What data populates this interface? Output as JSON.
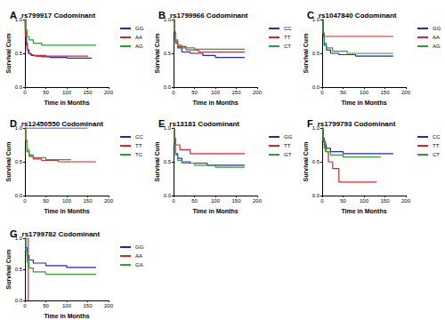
{
  "chart_data": [
    {
      "type": "line",
      "title": "rs799917 Codominant",
      "annotations": [
        "A"
      ],
      "x_label": "Time in Months",
      "y_label": "Survival Cum",
      "xlim": [
        0,
        200
      ],
      "xticks": [
        0,
        50,
        100,
        150,
        200
      ],
      "ylim": [
        0,
        1
      ],
      "yticks": [
        {
          "value": 0,
          "label": "0.0"
        },
        {
          "value": 0.5,
          "label": "0.5"
        },
        {
          "value": 1,
          "label": "1.0"
        }
      ],
      "grid": false,
      "line_style": "step",
      "series": [
        {
          "name": "GG",
          "color": "#2424c8",
          "x": [
            0,
            2,
            4,
            6,
            10,
            15,
            25,
            40,
            60,
            100,
            160
          ],
          "values": [
            1,
            0.8,
            0.65,
            0.55,
            0.5,
            0.47,
            0.46,
            0.45,
            0.44,
            0.43,
            0.43
          ]
        },
        {
          "name": "AA",
          "color": "#e0202a",
          "x": [
            0,
            1,
            3,
            5,
            8,
            12,
            20,
            50,
            150
          ],
          "values": [
            1,
            0.75,
            0.62,
            0.55,
            0.5,
            0.48,
            0.47,
            0.46,
            0.45
          ]
        },
        {
          "name": "AG",
          "color": "#2ca02c",
          "x": [
            0,
            2,
            5,
            10,
            20,
            40,
            170
          ],
          "values": [
            1,
            0.85,
            0.75,
            0.7,
            0.65,
            0.62,
            0.62
          ]
        }
      ]
    },
    {
      "type": "line",
      "title": "rs1799966 Codominant",
      "annotations": [
        "B"
      ],
      "x_label": "Time in Months",
      "y_label": "Survival Cum",
      "xlim": [
        0,
        200
      ],
      "xticks": [
        0,
        50,
        100,
        150,
        200
      ],
      "ylim": [
        0,
        1
      ],
      "yticks": [
        {
          "value": 0,
          "label": "0.0"
        },
        {
          "value": 0.5,
          "label": "0.5"
        },
        {
          "value": 1,
          "label": "1.0"
        }
      ],
      "grid": false,
      "line_style": "step",
      "series": [
        {
          "name": "CC",
          "color": "#2424c8",
          "x": [
            0,
            2,
            5,
            10,
            20,
            40,
            70,
            100,
            170
          ],
          "values": [
            1,
            0.8,
            0.65,
            0.58,
            0.52,
            0.5,
            0.47,
            0.44,
            0.44
          ]
        },
        {
          "name": "TT",
          "color": "#e0202a",
          "x": [
            0,
            2,
            5,
            10,
            30,
            60,
            170
          ],
          "values": [
            1,
            0.8,
            0.68,
            0.6,
            0.55,
            0.52,
            0.52
          ]
        },
        {
          "name": "CT",
          "color": "#2ca02c",
          "x": [
            0,
            2,
            5,
            10,
            20,
            50,
            170
          ],
          "values": [
            1,
            0.82,
            0.7,
            0.62,
            0.58,
            0.56,
            0.56
          ]
        }
      ]
    },
    {
      "type": "line",
      "title": "rs1047840 Codominant",
      "annotations": [
        "C"
      ],
      "x_label": "Time in Months",
      "y_label": "Survival Cum",
      "xlim": [
        0,
        200
      ],
      "xticks": [
        0,
        50,
        100,
        150,
        200
      ],
      "ylim": [
        0,
        1
      ],
      "yticks": [
        {
          "value": 0,
          "label": "0.0"
        },
        {
          "value": 0.5,
          "label": "0.5"
        },
        {
          "value": 1,
          "label": "1.0"
        }
      ],
      "grid": false,
      "line_style": "step",
      "series": [
        {
          "name": "GG",
          "color": "#2424c8",
          "x": [
            0,
            2,
            5,
            10,
            20,
            40,
            80,
            170
          ],
          "values": [
            1,
            0.8,
            0.62,
            0.55,
            0.5,
            0.48,
            0.46,
            0.46
          ]
        },
        {
          "name": "AA",
          "color": "#e0202a",
          "x": [
            0,
            3,
            170
          ],
          "values": [
            1,
            0.75,
            0.75
          ]
        },
        {
          "name": "AG",
          "color": "#2ca02c",
          "x": [
            0,
            2,
            5,
            10,
            25,
            60,
            170
          ],
          "values": [
            1,
            0.8,
            0.65,
            0.58,
            0.53,
            0.5,
            0.5
          ]
        }
      ]
    },
    {
      "type": "line",
      "title": "rs12450550 Codominant",
      "annotations": [
        "D"
      ],
      "x_label": "Time in Months",
      "y_label": "Survival Cum",
      "xlim": [
        0,
        200
      ],
      "xticks": [
        0,
        50,
        100,
        150,
        200
      ],
      "ylim": [
        0,
        1
      ],
      "yticks": [
        {
          "value": 0,
          "label": "0.0"
        },
        {
          "value": 0.5,
          "label": "0.5"
        },
        {
          "value": 1,
          "label": "1.0"
        }
      ],
      "grid": false,
      "line_style": "step",
      "series": [
        {
          "name": "CC",
          "color": "#2424c8",
          "x": [
            0,
            150
          ],
          "values": [
            1,
            1
          ]
        },
        {
          "name": "TT",
          "color": "#e0202a",
          "x": [
            0,
            2,
            5,
            10,
            20,
            40,
            80,
            170
          ],
          "values": [
            1,
            0.8,
            0.65,
            0.58,
            0.54,
            0.52,
            0.5,
            0.5
          ]
        },
        {
          "name": "TC",
          "color": "#2ca02c",
          "x": [
            0,
            2,
            5,
            10,
            20,
            50,
            110
          ],
          "values": [
            1,
            0.82,
            0.68,
            0.6,
            0.56,
            0.53,
            0.53
          ]
        }
      ]
    },
    {
      "type": "line",
      "title": "rs13181 Codominant",
      "annotations": [
        "E"
      ],
      "x_label": "Time in Months",
      "y_label": "Survival Cum",
      "xlim": [
        0,
        200
      ],
      "xticks": [
        0,
        50,
        100,
        150,
        200
      ],
      "ylim": [
        0,
        1
      ],
      "yticks": [
        {
          "value": 0,
          "label": "0.0"
        },
        {
          "value": 0.5,
          "label": "0.5"
        },
        {
          "value": 1,
          "label": "1.0"
        }
      ],
      "grid": false,
      "line_style": "step",
      "series": [
        {
          "name": "GG",
          "color": "#2424c8",
          "x": [
            0,
            2,
            5,
            10,
            20,
            40,
            80,
            170
          ],
          "values": [
            1,
            0.78,
            0.62,
            0.55,
            0.5,
            0.48,
            0.45,
            0.45
          ]
        },
        {
          "name": "TT",
          "color": "#e0202a",
          "x": [
            0,
            2,
            5,
            15,
            40,
            170
          ],
          "values": [
            1,
            0.85,
            0.75,
            0.68,
            0.62,
            0.62
          ]
        },
        {
          "name": "GT",
          "color": "#2ca02c",
          "x": [
            0,
            2,
            5,
            10,
            20,
            50,
            100,
            170
          ],
          "values": [
            1,
            0.75,
            0.6,
            0.52,
            0.48,
            0.45,
            0.42,
            0.42
          ]
        }
      ]
    },
    {
      "type": "line",
      "title": "rs1799793 Codominant",
      "annotations": [
        "F"
      ],
      "x_label": "Time in Months",
      "y_label": "Survival Cum",
      "xlim": [
        0,
        200
      ],
      "xticks": [
        0,
        50,
        100,
        150,
        200
      ],
      "ylim": [
        0,
        1
      ],
      "yticks": [
        {
          "value": 0,
          "label": "0.0"
        },
        {
          "value": 0.5,
          "label": "0.5"
        },
        {
          "value": 1,
          "label": "1.0"
        }
      ],
      "grid": false,
      "line_style": "step",
      "series": [
        {
          "name": "CC",
          "color": "#2424c8",
          "x": [
            0,
            2,
            5,
            10,
            20,
            50,
            170
          ],
          "values": [
            1,
            0.85,
            0.75,
            0.7,
            0.65,
            0.62,
            0.62
          ]
        },
        {
          "name": "TT",
          "color": "#e0202a",
          "x": [
            0,
            3,
            8,
            15,
            25,
            40,
            130
          ],
          "values": [
            1,
            0.8,
            0.65,
            0.5,
            0.4,
            0.2,
            0.2
          ]
        },
        {
          "name": "CT",
          "color": "#2ca02c",
          "x": [
            0,
            2,
            5,
            10,
            20,
            50,
            140
          ],
          "values": [
            1,
            0.82,
            0.7,
            0.65,
            0.6,
            0.57,
            0.57
          ]
        }
      ]
    },
    {
      "type": "line",
      "title": "rs1799782 Codominant",
      "annotations": [
        "G"
      ],
      "x_label": "Time in Months",
      "y_label": "Survival Cum",
      "xlim": [
        0,
        200
      ],
      "xticks": [
        0,
        50,
        100,
        150,
        200
      ],
      "ylim": [
        0,
        1
      ],
      "yticks": [
        {
          "value": 0,
          "label": "0.0"
        },
        {
          "value": 0.5,
          "label": "0.5"
        },
        {
          "value": 1,
          "label": "1.0"
        }
      ],
      "grid": false,
      "line_style": "step",
      "series": [
        {
          "name": "GG",
          "color": "#2424c8",
          "x": [
            0,
            2,
            5,
            10,
            20,
            50,
            100,
            170
          ],
          "values": [
            1,
            0.85,
            0.72,
            0.65,
            0.6,
            0.56,
            0.53,
            0.53
          ]
        },
        {
          "name": "AA",
          "color": "#e0202a",
          "x": [
            0,
            8
          ],
          "values": [
            1,
            0
          ]
        },
        {
          "name": "GA",
          "color": "#2ca02c",
          "x": [
            0,
            2,
            5,
            10,
            20,
            50,
            170
          ],
          "values": [
            1,
            0.8,
            0.62,
            0.52,
            0.46,
            0.42,
            0.42
          ]
        }
      ]
    }
  ]
}
